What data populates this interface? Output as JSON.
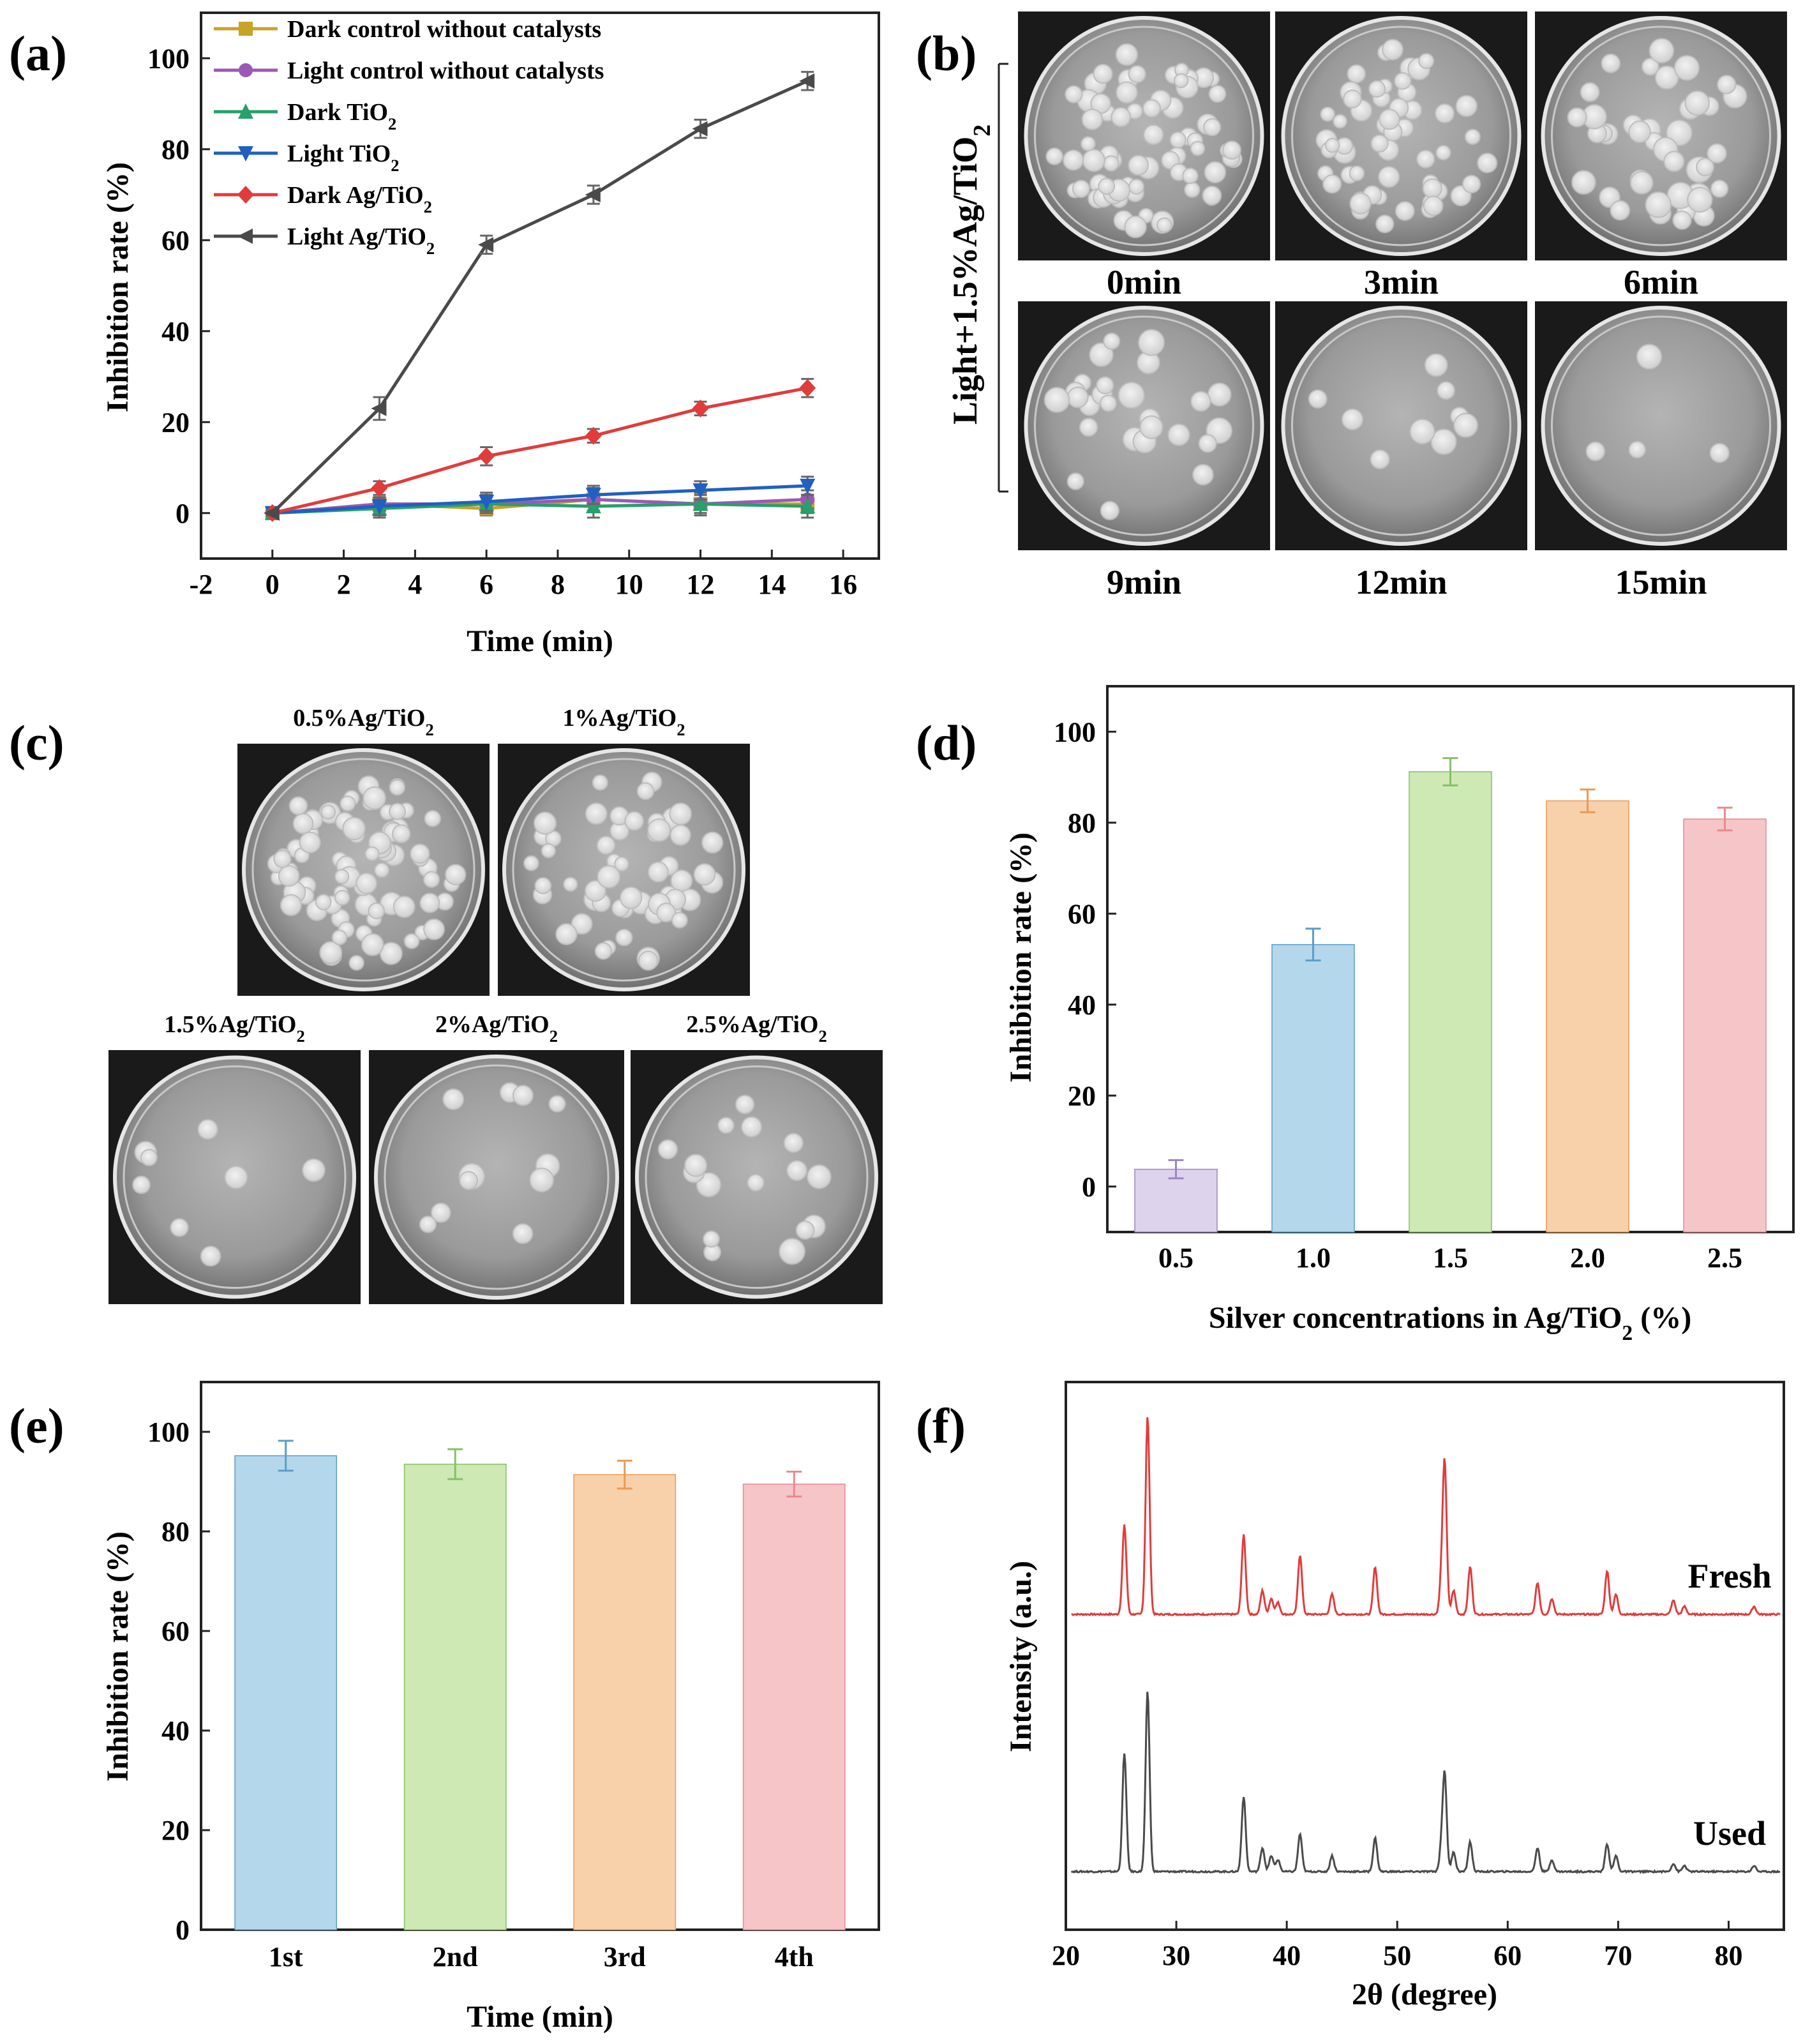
{
  "figure": {
    "panels": {
      "a": "(a)",
      "b": "(b)",
      "c": "(c)",
      "d": "(d)",
      "e": "(e)",
      "f": "(f)"
    },
    "b_side_label": "Light+1.5%Ag/TiO2",
    "b_times": [
      "0min",
      "3min",
      "6min",
      "9min",
      "12min",
      "15min"
    ],
    "c_labels": [
      "0.5%Ag/TiO2",
      "1%Ag/TiO2",
      "1.5%Ag/TiO2",
      "2%Ag/TiO2",
      "2.5%Ag/TiO2"
    ],
    "colonies": {
      "b": [
        70,
        55,
        40,
        26,
        9,
        4
      ],
      "c": [
        80,
        55,
        8,
        11,
        16
      ]
    }
  },
  "chart_data": [
    {
      "panel": "a",
      "type": "line",
      "title": "",
      "xlabel": "Time (min)",
      "ylabel": "Inhibition rate (%)",
      "xlim": [
        -2,
        17
      ],
      "ylim": [
        -10,
        110
      ],
      "xticks": [
        -2,
        0,
        2,
        4,
        6,
        8,
        10,
        12,
        14,
        16
      ],
      "yticks": [
        0,
        20,
        40,
        60,
        80,
        100
      ],
      "x": [
        0,
        3,
        6,
        9,
        12,
        15
      ],
      "legend_position": "top-left",
      "series": [
        {
          "name": "Dark control without catalysts",
          "color": "#c9a227",
          "marker": "square",
          "values": [
            0,
            2,
            1,
            3,
            2,
            2
          ],
          "errors": [
            0.5,
            1.5,
            1.5,
            2.5,
            2,
            2
          ]
        },
        {
          "name": "Light control without catalysts",
          "color": "#9b59b6",
          "marker": "circle",
          "values": [
            0,
            2,
            2,
            3,
            2,
            3
          ],
          "errors": [
            0.5,
            1.5,
            1.5,
            2.5,
            2,
            2
          ]
        },
        {
          "name": "Dark TiO2",
          "color": "#27a06b",
          "marker": "triangle-up",
          "values": [
            0,
            1,
            2,
            1.5,
            2,
            1.5
          ],
          "errors": [
            0.5,
            2,
            2,
            2.5,
            2.5,
            2.5
          ]
        },
        {
          "name": "Light TiO2",
          "color": "#2060c0",
          "marker": "triangle-down",
          "values": [
            0,
            1.5,
            2.5,
            4,
            5,
            6
          ],
          "errors": [
            0.5,
            2,
            2,
            2,
            2,
            2
          ]
        },
        {
          "name": "Dark Ag/TiO2",
          "color": "#e03c3c",
          "marker": "diamond",
          "values": [
            0,
            5.5,
            12.5,
            17,
            23,
            27.5
          ],
          "errors": [
            0.5,
            1.5,
            2,
            1.5,
            1.5,
            2
          ]
        },
        {
          "name": "Light Ag/TiO2",
          "color": "#4a4a4a",
          "marker": "triangle-left",
          "values": [
            0,
            23,
            59,
            70,
            84.5,
            95
          ],
          "errors": [
            0.5,
            2.5,
            2,
            2,
            2,
            2
          ]
        }
      ]
    },
    {
      "panel": "d",
      "type": "bar",
      "title": "",
      "xlabel": "Silver concentrations in Ag/TiO2 (%)",
      "ylabel": "Inhibition rate (%)",
      "ylim": [
        -10,
        110
      ],
      "yticks": [
        0,
        20,
        40,
        60,
        80,
        100
      ],
      "categories": [
        "0.5",
        "1.0",
        "1.5",
        "2.0",
        "2.5"
      ],
      "values": [
        3.8,
        53.2,
        91.2,
        84.8,
        80.8
      ],
      "errors": [
        2,
        3.5,
        3,
        2.5,
        2.5
      ],
      "colors": [
        "#ddd3ec",
        "#b4d7eb",
        "#cfe9b4",
        "#f8d1aa",
        "#f5c5c7"
      ],
      "error_colors": [
        "#9a86c4",
        "#5a9ec8",
        "#85c06a",
        "#e89a55",
        "#e88a8e"
      ]
    },
    {
      "panel": "e",
      "type": "bar",
      "title": "",
      "xlabel": "Time (min)",
      "ylabel": "Inhibition rate (%)",
      "ylim": [
        0,
        110
      ],
      "yticks": [
        0,
        20,
        40,
        60,
        80,
        100
      ],
      "categories": [
        "1st",
        "2nd",
        "3rd",
        "4th"
      ],
      "values": [
        95.2,
        93.5,
        91.4,
        89.5
      ],
      "errors": [
        3,
        3,
        2.8,
        2.5
      ],
      "colors": [
        "#b4d7eb",
        "#cfe9b4",
        "#f8d1aa",
        "#f5c5c7"
      ],
      "error_colors": [
        "#5a9ec8",
        "#85c06a",
        "#e89a55",
        "#e88a8e"
      ]
    },
    {
      "panel": "f",
      "type": "line",
      "title": "",
      "xlabel": "2θ (degree)",
      "ylabel": "Intensity (a.u.)",
      "xlim": [
        20,
        85
      ],
      "xticks": [
        20,
        30,
        40,
        50,
        60,
        70,
        80
      ],
      "peaks_2theta": [
        25.3,
        27.4,
        36.1,
        37.8,
        38.6,
        39.2,
        41.2,
        44.1,
        48.0,
        54.0,
        54.3,
        55.1,
        56.6,
        62.7,
        64.0,
        69.0,
        69.8,
        75.0,
        76.0,
        82.3
      ],
      "series": [
        {
          "name": "Fresh",
          "color": "#e03c3c",
          "intensities": [
            0.45,
            1.0,
            0.4,
            0.12,
            0.08,
            0.06,
            0.3,
            0.1,
            0.24,
            0.15,
            0.75,
            0.12,
            0.24,
            0.16,
            0.08,
            0.22,
            0.1,
            0.07,
            0.04,
            0.04
          ]
        },
        {
          "name": "Used",
          "color": "#4a4a4a",
          "intensities": [
            0.6,
            0.91,
            0.38,
            0.12,
            0.08,
            0.06,
            0.19,
            0.08,
            0.17,
            0.11,
            0.48,
            0.1,
            0.15,
            0.12,
            0.06,
            0.14,
            0.08,
            0.04,
            0.03,
            0.03
          ]
        }
      ]
    }
  ]
}
